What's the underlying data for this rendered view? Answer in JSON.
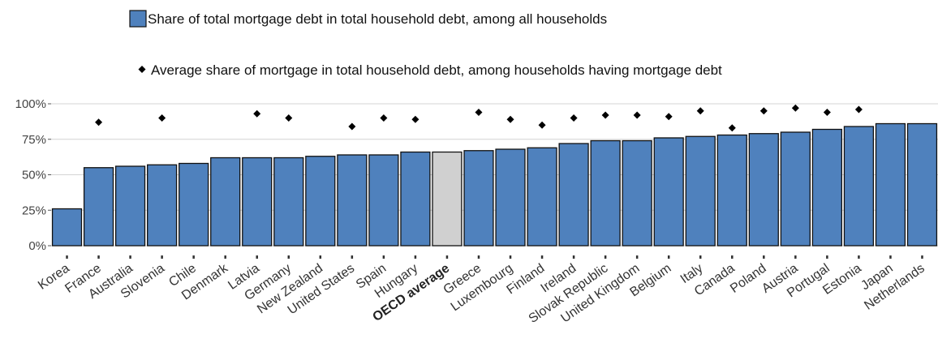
{
  "chart_data": {
    "type": "bar",
    "categories": [
      "Korea",
      "France",
      "Australia",
      "Slovenia",
      "Chile",
      "Denmark",
      "Latvia",
      "Germany",
      "New Zealand",
      "United States",
      "Spain",
      "Hungary",
      "OECD average",
      "Greece",
      "Luxembourg",
      "Finland",
      "Ireland",
      "Slovak Republic",
      "United Kingdom",
      "Belgium",
      "Italy",
      "Canada",
      "Poland",
      "Austria",
      "Portugal",
      "Estonia",
      "Japan",
      "Netherlands"
    ],
    "highlight_category": "OECD average",
    "series": [
      {
        "name": "Share of total mortgage debt in total household debt, among all households",
        "mark": "bar",
        "color": "#4f81bd",
        "highlight_color": "#d0d0d0",
        "values": [
          26,
          55,
          56,
          57,
          58,
          62,
          62,
          62,
          63,
          64,
          64,
          66,
          66,
          67,
          68,
          69,
          72,
          74,
          74,
          76,
          77,
          78,
          79,
          80,
          82,
          84,
          86,
          86
        ]
      },
      {
        "name": "Average share of mortgage in total household debt, among households having mortgage debt",
        "mark": "diamond",
        "color": "#000000",
        "values": [
          null,
          87,
          null,
          90,
          null,
          null,
          93,
          90,
          null,
          84,
          90,
          89,
          null,
          94,
          89,
          85,
          90,
          92,
          92,
          91,
          95,
          83,
          95,
          97,
          94,
          96,
          null,
          null
        ]
      }
    ],
    "y_ticks": [
      "0%",
      "25%",
      "50%",
      "75%",
      "100%"
    ],
    "y_tick_values": [
      0,
      25,
      50,
      75,
      100
    ],
    "ylim": [
      0,
      100
    ],
    "grid": "horizontal",
    "legend_position": "top"
  }
}
